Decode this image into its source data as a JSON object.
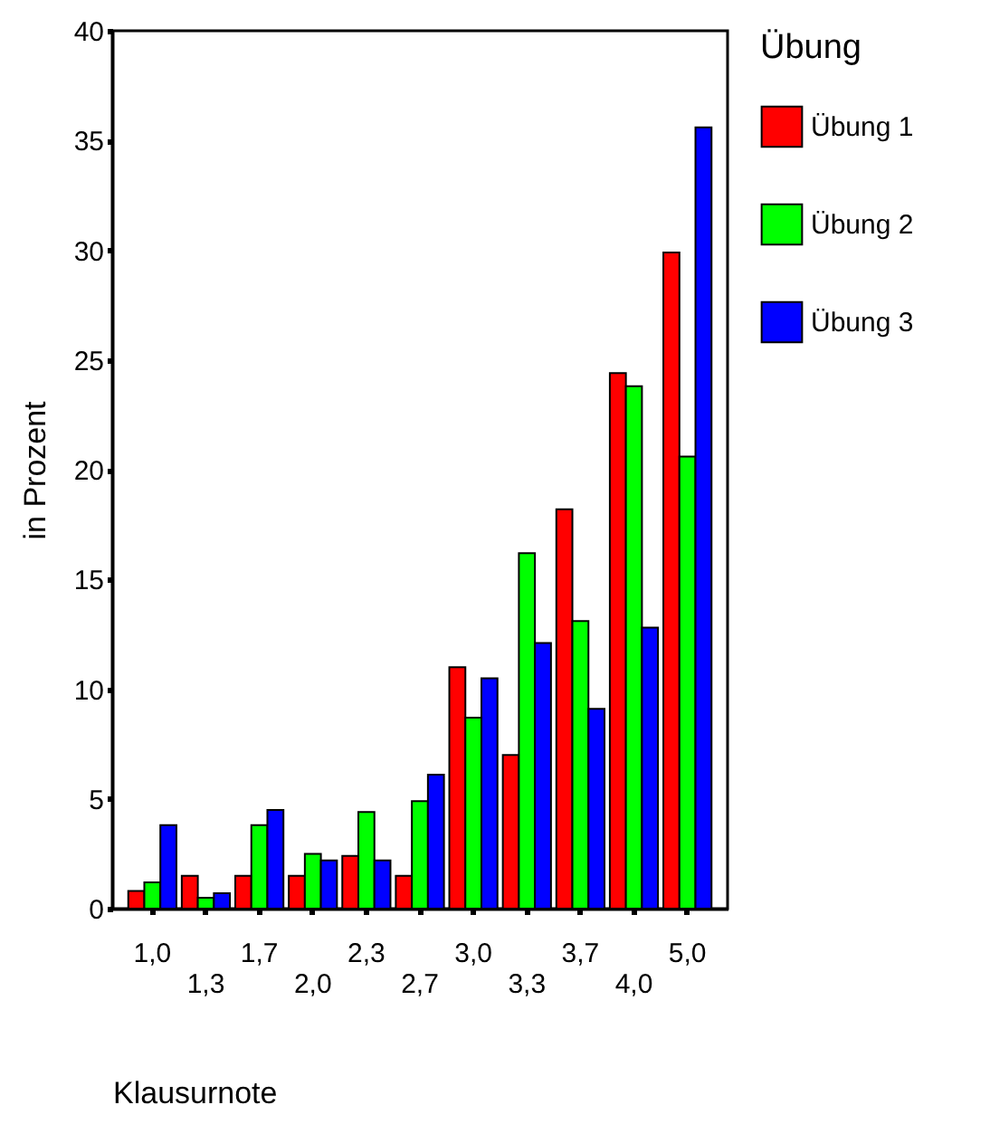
{
  "chart_data": {
    "type": "bar",
    "xlabel": "Klausurnote",
    "ylabel": "in Prozent",
    "legend_title": "Übung",
    "legend": "right",
    "grid": false,
    "categories": [
      "1,0",
      "1,3",
      "1,7",
      "2,0",
      "2,3",
      "2,7",
      "3,0",
      "3,3",
      "3,7",
      "4,0",
      "5,0"
    ],
    "ylim": [
      0,
      40
    ],
    "yticks": [
      0,
      5,
      10,
      15,
      20,
      25,
      30,
      35,
      40
    ],
    "series": [
      {
        "name": "Übung 1",
        "color": "#ff0000",
        "values": [
          0.8,
          1.5,
          1.5,
          1.5,
          2.4,
          1.5,
          11.0,
          7.0,
          18.2,
          24.4,
          29.9
        ]
      },
      {
        "name": "Übung 2",
        "color": "#00ff00",
        "values": [
          1.2,
          0.5,
          3.8,
          2.5,
          4.4,
          4.9,
          8.7,
          16.2,
          13.1,
          23.8,
          20.6
        ]
      },
      {
        "name": "Übung 3",
        "color": "#0000ff",
        "values": [
          3.8,
          0.7,
          4.5,
          2.2,
          2.2,
          6.1,
          10.5,
          12.1,
          9.1,
          12.8,
          35.6
        ]
      }
    ]
  }
}
